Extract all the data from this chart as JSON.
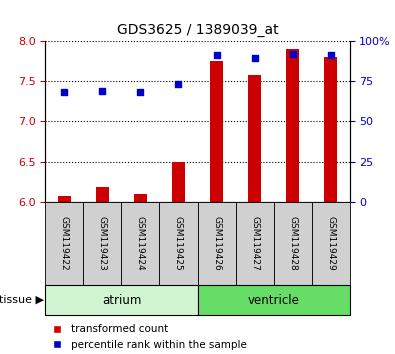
{
  "title": "GDS3625 / 1389039_at",
  "samples": [
    "GSM119422",
    "GSM119423",
    "GSM119424",
    "GSM119425",
    "GSM119426",
    "GSM119427",
    "GSM119428",
    "GSM119429"
  ],
  "transformed_count": [
    6.07,
    6.18,
    6.1,
    6.5,
    7.75,
    7.58,
    7.9,
    7.8
  ],
  "percentile_rank": [
    68,
    69,
    68,
    73,
    91,
    89,
    92,
    91
  ],
  "ylim_left": [
    6.0,
    8.0
  ],
  "ylim_right": [
    0,
    100
  ],
  "yticks_left": [
    6.0,
    6.5,
    7.0,
    7.5,
    8.0
  ],
  "yticks_right": [
    0,
    25,
    50,
    75,
    100
  ],
  "ytick_labels_right": [
    "0",
    "25",
    "50",
    "75",
    "100%"
  ],
  "tissue_groups": [
    {
      "label": "atrium",
      "start": 0,
      "end": 4,
      "color": "#d0f5d0"
    },
    {
      "label": "ventricle",
      "start": 4,
      "end": 8,
      "color": "#66dd66"
    }
  ],
  "bar_color": "#cc0000",
  "dot_color": "#0000cc",
  "bar_bottom": 6.0,
  "bar_width": 0.35,
  "label_color_left": "#cc0000",
  "label_color_right": "#0000cc",
  "grid_linestyle": ":",
  "grid_linewidth": 0.8
}
